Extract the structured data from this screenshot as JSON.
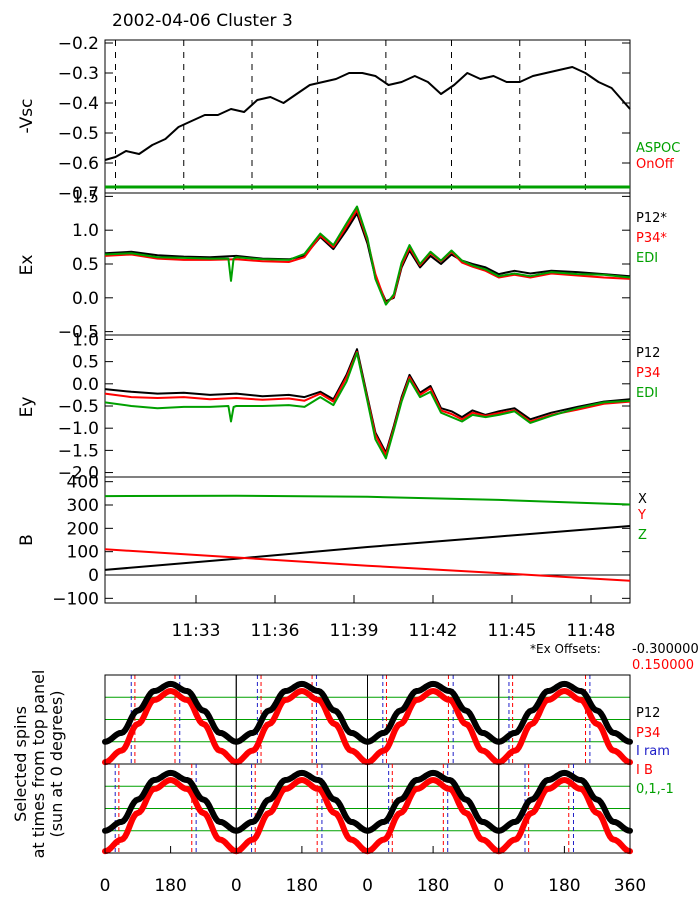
{
  "figure": {
    "title": "2002-04-06 Cluster 3",
    "time_ticks": [
      "11:33",
      "11:36",
      "11:39",
      "11:42",
      "11:45",
      "11:48"
    ],
    "offsets": {
      "label": "*Ex Offsets:",
      "p12": "-0.300000",
      "p34": "0.150000"
    },
    "colors": {
      "black": "#000000",
      "red": "#ff0000",
      "green": "#00a000",
      "blue": "#2020c8"
    }
  },
  "chart_data": [
    {
      "id": "vsc",
      "type": "line",
      "ylabel": "-Vsc",
      "ylim": [
        -0.7,
        -0.19
      ],
      "yticks": [
        -0.2,
        -0.3,
        -0.4,
        -0.5,
        -0.6,
        -0.7
      ],
      "ytick_labels": [
        "-0.2",
        "-0.3",
        "-0.4",
        "-0.5",
        "-0.6",
        "-0.7"
      ],
      "xlim": [
        0,
        20
      ],
      "legend": [
        {
          "text": "ASPOC",
          "color": "#00a000"
        },
        {
          "text": "OnOff",
          "color": "#ff0000"
        }
      ],
      "dashed_lines_x": [
        0.4,
        3.0,
        5.6,
        8.1,
        10.7,
        13.2,
        15.8,
        18.3
      ],
      "series": [
        {
          "name": "Vsc",
          "color": "#000000",
          "x": [
            0,
            0.4,
            0.8,
            1.3,
            1.8,
            2.3,
            2.8,
            3.3,
            3.8,
            4.3,
            4.8,
            5.3,
            5.8,
            6.3,
            6.8,
            7.3,
            7.8,
            8.3,
            8.8,
            9.3,
            9.8,
            10.3,
            10.8,
            11.3,
            11.8,
            12.3,
            12.8,
            13.3,
            13.8,
            14.3,
            14.8,
            15.3,
            15.8,
            16.3,
            16.8,
            17.3,
            17.8,
            18.3,
            18.8,
            19.3,
            19.7,
            20
          ],
          "y": [
            -0.59,
            -0.58,
            -0.56,
            -0.57,
            -0.54,
            -0.52,
            -0.48,
            -0.46,
            -0.44,
            -0.44,
            -0.42,
            -0.43,
            -0.39,
            -0.38,
            -0.4,
            -0.37,
            -0.34,
            -0.33,
            -0.32,
            -0.3,
            -0.3,
            -0.31,
            -0.34,
            -0.33,
            -0.31,
            -0.33,
            -0.37,
            -0.34,
            -0.3,
            -0.32,
            -0.31,
            -0.33,
            -0.33,
            -0.31,
            -0.3,
            -0.29,
            -0.28,
            -0.3,
            -0.33,
            -0.35,
            -0.39,
            -0.42
          ]
        },
        {
          "name": "ASPOC",
          "color": "#00a000",
          "x": [
            0,
            20
          ],
          "y": [
            -0.68,
            -0.68
          ]
        }
      ]
    },
    {
      "id": "ex",
      "type": "line",
      "ylabel": "Ex",
      "ylim": [
        -0.55,
        1.55
      ],
      "yticks": [
        1.5,
        1.0,
        0.5,
        0.0,
        -0.5
      ],
      "ytick_labels": [
        "1.5",
        "1.0",
        "0.5",
        "0.0",
        "-0.5"
      ],
      "xlim": [
        0,
        20
      ],
      "legend": [
        {
          "text": "P12*",
          "color": "#000000"
        },
        {
          "text": "P34*",
          "color": "#ff0000"
        },
        {
          "text": "EDI",
          "color": "#00a000"
        }
      ],
      "series": [
        {
          "name": "P12",
          "color": "#000000",
          "x": [
            0,
            1,
            2,
            3,
            4,
            5,
            6,
            7,
            7.6,
            8.2,
            8.7,
            9.2,
            9.6,
            10.0,
            10.3,
            10.7,
            11.0,
            11.3,
            11.6,
            12.0,
            12.4,
            12.8,
            13.2,
            13.6,
            14.0,
            14.5,
            15.0,
            15.6,
            16.2,
            17.0,
            18.0,
            19.0,
            20
          ],
          "y": [
            0.66,
            0.68,
            0.63,
            0.61,
            0.6,
            0.62,
            0.58,
            0.57,
            0.62,
            0.9,
            0.72,
            1.0,
            1.25,
            0.8,
            0.3,
            -0.05,
            0.0,
            0.45,
            0.7,
            0.45,
            0.62,
            0.5,
            0.64,
            0.55,
            0.5,
            0.45,
            0.35,
            0.4,
            0.36,
            0.4,
            0.38,
            0.35,
            0.32
          ]
        },
        {
          "name": "P34",
          "color": "#ff0000",
          "x": [
            0,
            1,
            2,
            3,
            4,
            5,
            6,
            7,
            7.6,
            8.2,
            8.7,
            9.2,
            9.6,
            10.0,
            10.3,
            10.7,
            11.0,
            11.3,
            11.6,
            12.0,
            12.4,
            12.8,
            13.2,
            13.6,
            14.0,
            14.5,
            15.0,
            15.6,
            16.2,
            17.0,
            18.0,
            19.0,
            20
          ],
          "y": [
            0.62,
            0.64,
            0.58,
            0.56,
            0.56,
            0.57,
            0.54,
            0.53,
            0.6,
            0.92,
            0.75,
            1.05,
            1.3,
            0.85,
            0.35,
            -0.08,
            0.02,
            0.48,
            0.74,
            0.48,
            0.66,
            0.54,
            0.68,
            0.52,
            0.46,
            0.4,
            0.3,
            0.34,
            0.3,
            0.36,
            0.33,
            0.3,
            0.28
          ]
        },
        {
          "name": "EDI",
          "color": "#00a000",
          "x": [
            0,
            1,
            2,
            3,
            4,
            4.7,
            4.8,
            4.9,
            5,
            6,
            7,
            7.6,
            8.2,
            8.7,
            9.2,
            9.6,
            10.0,
            10.3,
            10.7,
            11.0,
            11.3,
            11.6,
            12.0,
            12.4,
            12.8,
            13.2,
            13.6,
            14.0,
            14.5,
            15.0,
            15.6,
            16.2,
            17.0,
            18.0,
            19.0,
            20
          ],
          "y": [
            0.64,
            0.66,
            0.6,
            0.59,
            0.58,
            0.58,
            0.25,
            0.58,
            0.6,
            0.57,
            0.56,
            0.65,
            0.95,
            0.78,
            1.1,
            1.35,
            0.88,
            0.28,
            -0.1,
            0.05,
            0.52,
            0.78,
            0.5,
            0.68,
            0.55,
            0.7,
            0.55,
            0.48,
            0.42,
            0.32,
            0.36,
            0.32,
            0.38,
            0.35,
            0.34,
            0.3
          ]
        }
      ]
    },
    {
      "id": "ey",
      "type": "line",
      "ylabel": "Ey",
      "ylim": [
        -2.1,
        1.1
      ],
      "yticks": [
        1.0,
        0.5,
        0.0,
        -0.5,
        -1.0,
        -1.5,
        -2.0
      ],
      "ytick_labels": [
        "1.0",
        "0.5",
        "0.0",
        "-0.5",
        "-1.0",
        "-1.5",
        "-2.0"
      ],
      "xlim": [
        0,
        20
      ],
      "legend": [
        {
          "text": "P12",
          "color": "#000000"
        },
        {
          "text": "P34",
          "color": "#ff0000"
        },
        {
          "text": "EDI",
          "color": "#00a000"
        }
      ],
      "series": [
        {
          "name": "P12",
          "color": "#000000",
          "x": [
            0,
            1,
            2,
            3,
            4,
            5,
            6,
            7,
            7.6,
            8.2,
            8.7,
            9.2,
            9.6,
            10.0,
            10.3,
            10.7,
            11.0,
            11.3,
            11.6,
            12.0,
            12.4,
            12.8,
            13.2,
            13.6,
            14.0,
            14.5,
            15.0,
            15.6,
            16.2,
            17.0,
            18.0,
            19.0,
            20
          ],
          "y": [
            -0.12,
            -0.18,
            -0.22,
            -0.2,
            -0.25,
            -0.22,
            -0.28,
            -0.25,
            -0.3,
            -0.18,
            -0.35,
            0.2,
            0.78,
            -0.3,
            -1.1,
            -1.55,
            -0.95,
            -0.3,
            0.2,
            -0.2,
            -0.05,
            -0.55,
            -0.62,
            -0.75,
            -0.6,
            -0.7,
            -0.62,
            -0.55,
            -0.8,
            -0.65,
            -0.52,
            -0.4,
            -0.35
          ]
        },
        {
          "name": "P34",
          "color": "#ff0000",
          "x": [
            0,
            1,
            2,
            3,
            4,
            5,
            6,
            7,
            7.6,
            8.2,
            8.7,
            9.2,
            9.6,
            10.0,
            10.3,
            10.7,
            11.0,
            11.3,
            11.6,
            12.0,
            12.4,
            12.8,
            13.2,
            13.6,
            14.0,
            14.5,
            15.0,
            15.6,
            16.2,
            17.0,
            18.0,
            19.0,
            20
          ],
          "y": [
            -0.22,
            -0.3,
            -0.32,
            -0.3,
            -0.35,
            -0.32,
            -0.36,
            -0.33,
            -0.38,
            -0.22,
            -0.4,
            0.15,
            0.72,
            -0.35,
            -1.15,
            -1.6,
            -1.0,
            -0.35,
            0.15,
            -0.25,
            -0.1,
            -0.6,
            -0.68,
            -0.8,
            -0.65,
            -0.72,
            -0.66,
            -0.6,
            -0.85,
            -0.7,
            -0.58,
            -0.45,
            -0.4
          ]
        },
        {
          "name": "EDI",
          "color": "#00a000",
          "x": [
            0,
            1,
            2,
            3,
            4,
            4.7,
            4.8,
            4.9,
            5,
            6,
            7,
            7.6,
            8.2,
            8.7,
            9.2,
            9.6,
            10.0,
            10.3,
            10.7,
            11.0,
            11.3,
            11.6,
            12.0,
            12.4,
            12.8,
            13.2,
            13.6,
            14.0,
            14.5,
            15.0,
            15.6,
            16.2,
            17.0,
            18.0,
            19.0,
            20
          ],
          "y": [
            -0.42,
            -0.5,
            -0.55,
            -0.52,
            -0.52,
            -0.5,
            -0.85,
            -0.52,
            -0.5,
            -0.5,
            -0.48,
            -0.52,
            -0.3,
            -0.48,
            0.05,
            0.7,
            -0.4,
            -1.25,
            -1.68,
            -1.05,
            -0.4,
            0.1,
            -0.3,
            -0.18,
            -0.65,
            -0.75,
            -0.85,
            -0.7,
            -0.75,
            -0.7,
            -0.62,
            -0.88,
            -0.72,
            -0.55,
            -0.42,
            -0.38
          ]
        }
      ]
    },
    {
      "id": "b",
      "type": "line",
      "ylabel": "B",
      "ylim": [
        -120,
        420
      ],
      "yticks": [
        400,
        300,
        200,
        100,
        0,
        -100
      ],
      "ytick_labels": [
        "400",
        "300",
        "200",
        "100",
        "0",
        "-100"
      ],
      "xlim": [
        0,
        20
      ],
      "zero_line": true,
      "legend": [
        {
          "text": "X",
          "color": "#000000"
        },
        {
          "text": "Y",
          "color": "#ff0000"
        },
        {
          "text": "Z",
          "color": "#00a000"
        }
      ],
      "series": [
        {
          "name": "X",
          "color": "#000000",
          "x": [
            0,
            5,
            10,
            15,
            20
          ],
          "y": [
            22,
            70,
            120,
            165,
            210
          ]
        },
        {
          "name": "Y",
          "color": "#ff0000",
          "x": [
            0,
            5,
            10,
            15,
            20
          ],
          "y": [
            110,
            75,
            40,
            8,
            -25
          ]
        },
        {
          "name": "Z",
          "color": "#00a000",
          "x": [
            0,
            5,
            10,
            15,
            20
          ],
          "y": [
            338,
            340,
            335,
            322,
            302
          ]
        }
      ]
    },
    {
      "id": "spins",
      "type": "line",
      "ylabel_lines": [
        "Selected spins",
        "at times from top panel",
        "(sun at 0 degrees)"
      ],
      "xtick_labels": [
        "0",
        "180",
        "0",
        "180",
        "0",
        "180",
        "0",
        "180",
        "360"
      ],
      "legend": [
        {
          "text": "P12",
          "color": "#000000"
        },
        {
          "text": "P34",
          "color": "#ff0000"
        },
        {
          "text": "I ram",
          "color": "#2020c8"
        },
        {
          "text": "I B",
          "color": "#ff0000"
        },
        {
          "text": "0,1,-1",
          "color": "#00a000"
        }
      ],
      "phase_deg": [
        0,
        45,
        90,
        135,
        180,
        225,
        270,
        315,
        360
      ],
      "p12_norm": [
        0.25,
        0.35,
        0.6,
        0.82,
        0.9,
        0.82,
        0.6,
        0.35,
        0.25
      ],
      "p34_norm": [
        0.02,
        0.15,
        0.45,
        0.72,
        0.82,
        0.72,
        0.45,
        0.15,
        0.02
      ],
      "ref_lines_norm": [
        0.25,
        0.5,
        0.75
      ],
      "ram_deg": [
        [
          72,
          205
        ],
        [
          58,
          220
        ],
        [
          42,
          235
        ],
        [
          28,
          250
        ]
      ],
      "b_deg": [
        [
          82,
          192
        ],
        [
          68,
          208
        ],
        [
          52,
          222
        ],
        [
          38,
          238
        ]
      ]
    }
  ]
}
